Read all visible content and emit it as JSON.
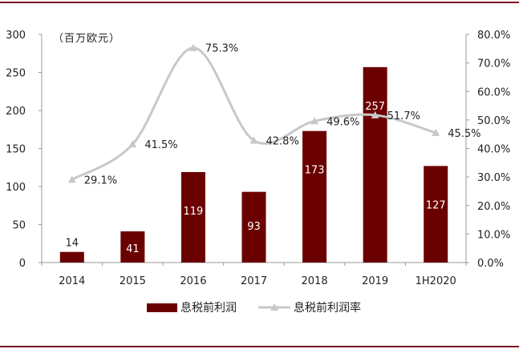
{
  "chart_data": {
    "type": "bar+line",
    "categories": [
      "2014",
      "2015",
      "2016",
      "2017",
      "2018",
      "2019",
      "1H2020"
    ],
    "unit_label": "（百万欧元）",
    "series": [
      {
        "name": "息税前利润",
        "type": "bar",
        "axis": "left",
        "values": [
          14,
          41,
          119,
          93,
          173,
          257,
          127
        ],
        "labels": [
          "14",
          "41",
          "119",
          "93",
          "173",
          "257",
          "127"
        ]
      },
      {
        "name": "息税前利润率",
        "type": "line",
        "axis": "right",
        "values": [
          29.1,
          41.5,
          75.3,
          42.8,
          49.6,
          51.7,
          45.5
        ],
        "labels": [
          "29.1%",
          "41.5%",
          "75.3%",
          "42.8%",
          "49.6%",
          "51.7%",
          "45.5%"
        ]
      }
    ],
    "y_left": {
      "ylim": [
        0,
        300
      ],
      "ticks": [
        "0",
        "50",
        "100",
        "150",
        "200",
        "250",
        "300"
      ]
    },
    "y_right": {
      "ylim": [
        0,
        80
      ],
      "ticks": [
        "0.0%",
        "10.0%",
        "20.0%",
        "30.0%",
        "40.0%",
        "50.0%",
        "60.0%",
        "70.0%",
        "80.0%"
      ]
    },
    "legend_position": "bottom",
    "grid": false,
    "colors": {
      "bar": "#6b0000",
      "line": "#c8c8c8",
      "frame": "#7a1420",
      "axis": "#999999"
    }
  }
}
